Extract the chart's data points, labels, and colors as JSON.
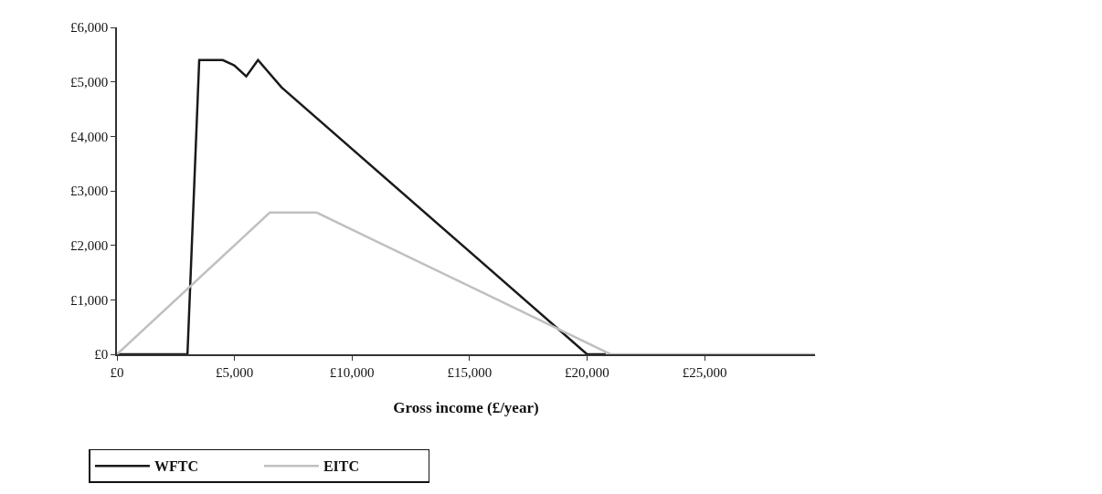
{
  "chart_data": {
    "type": "line",
    "xlabel": "Gross income (£/year)",
    "series": [
      {
        "name": "WFTC",
        "color": "#1a1a1a",
        "x": [
          0,
          3000,
          3500,
          4500,
          5000,
          5500,
          6000,
          7000,
          20000,
          20800
        ],
        "values": [
          0,
          0,
          5400,
          5400,
          5300,
          5100,
          5400,
          4900,
          0,
          0
        ]
      },
      {
        "name": "EITC",
        "color": "#c0c0c0",
        "x": [
          0,
          6500,
          8500,
          21000,
          29700
        ],
        "values": [
          0,
          2600,
          2600,
          0,
          0
        ]
      }
    ],
    "xlim": [
      0,
      29700
    ],
    "xticks": [
      {
        "value": 0,
        "label": "£0"
      },
      {
        "value": 5000,
        "label": "£5,000"
      },
      {
        "value": 10000,
        "label": "£10,000"
      },
      {
        "value": 15000,
        "label": "£15,000"
      },
      {
        "value": 20000,
        "label": "£20,000"
      },
      {
        "value": 25000,
        "label": "£25,000"
      }
    ],
    "ylim": [
      0,
      6000
    ],
    "yticks": [
      {
        "value": 0,
        "label": "£0"
      },
      {
        "value": 1000,
        "label": "£1,000"
      },
      {
        "value": 2000,
        "label": "£2,000"
      },
      {
        "value": 3000,
        "label": "£3,000"
      },
      {
        "value": 4000,
        "label": "£4,000"
      },
      {
        "value": 5000,
        "label": "£5,000"
      },
      {
        "value": 6000,
        "label": "£6,000"
      }
    ],
    "legend": "bottom left",
    "marker": "none",
    "line_style": "solid"
  }
}
